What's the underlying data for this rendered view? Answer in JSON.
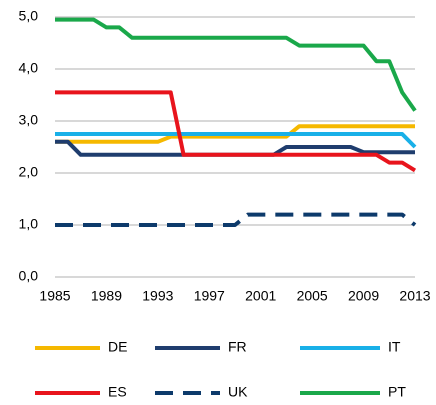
{
  "chart_data": {
    "type": "line",
    "x": [
      1985,
      1986,
      1987,
      1988,
      1989,
      1990,
      1991,
      1992,
      1993,
      1994,
      1995,
      1996,
      1997,
      1998,
      1999,
      2000,
      2001,
      2002,
      2003,
      2004,
      2005,
      2006,
      2007,
      2008,
      2009,
      2010,
      2011,
      2012,
      2013
    ],
    "series": [
      {
        "name": "DE",
        "color": "#f5b800",
        "values": [
          2.6,
          2.6,
          2.6,
          2.6,
          2.6,
          2.6,
          2.6,
          2.6,
          2.6,
          2.7,
          2.7,
          2.7,
          2.7,
          2.7,
          2.7,
          2.7,
          2.7,
          2.7,
          2.7,
          2.9,
          2.9,
          2.9,
          2.9,
          2.9,
          2.9,
          2.9,
          2.9,
          2.9,
          2.9
        ]
      },
      {
        "name": "FR",
        "color": "#1f3d6e",
        "values": [
          2.6,
          2.6,
          2.35,
          2.35,
          2.35,
          2.35,
          2.35,
          2.35,
          2.35,
          2.35,
          2.35,
          2.35,
          2.35,
          2.35,
          2.35,
          2.35,
          2.35,
          2.35,
          2.5,
          2.5,
          2.5,
          2.5,
          2.5,
          2.5,
          2.4,
          2.4,
          2.4,
          2.4,
          2.4
        ]
      },
      {
        "name": "IT",
        "color": "#19b0e8",
        "values": [
          2.75,
          2.75,
          2.75,
          2.75,
          2.75,
          2.75,
          2.75,
          2.75,
          2.75,
          2.75,
          2.75,
          2.75,
          2.75,
          2.75,
          2.75,
          2.75,
          2.75,
          2.75,
          2.75,
          2.75,
          2.75,
          2.75,
          2.75,
          2.75,
          2.75,
          2.75,
          2.75,
          2.75,
          2.5
        ]
      },
      {
        "name": "ES",
        "color": "#e8141c",
        "values": [
          3.55,
          3.55,
          3.55,
          3.55,
          3.55,
          3.55,
          3.55,
          3.55,
          3.55,
          3.55,
          2.35,
          2.35,
          2.35,
          2.35,
          2.35,
          2.35,
          2.35,
          2.35,
          2.35,
          2.35,
          2.35,
          2.35,
          2.35,
          2.35,
          2.35,
          2.35,
          2.2,
          2.2,
          2.05
        ]
      },
      {
        "name": "UK",
        "color": "#0d3a6b",
        "dashed": true,
        "values": [
          1.0,
          1.0,
          1.0,
          1.0,
          1.0,
          1.0,
          1.0,
          1.0,
          1.0,
          1.0,
          1.0,
          1.0,
          1.0,
          1.0,
          1.0,
          1.2,
          1.2,
          1.2,
          1.2,
          1.2,
          1.2,
          1.2,
          1.2,
          1.2,
          1.2,
          1.2,
          1.2,
          1.2,
          1.0
        ]
      },
      {
        "name": "PT",
        "color": "#1aa84a",
        "values": [
          4.95,
          4.95,
          4.95,
          4.95,
          4.8,
          4.8,
          4.6,
          4.6,
          4.6,
          4.6,
          4.6,
          4.6,
          4.6,
          4.6,
          4.6,
          4.6,
          4.6,
          4.6,
          4.6,
          4.45,
          4.45,
          4.45,
          4.45,
          4.45,
          4.45,
          4.15,
          4.15,
          3.55,
          3.2
        ]
      }
    ],
    "xlim": [
      1985,
      2013
    ],
    "xticks": [
      1985,
      1989,
      1993,
      1997,
      2001,
      2005,
      2009,
      2013
    ],
    "ylim": [
      0,
      5
    ],
    "yticks": [
      {
        "value": 0,
        "label": "0,0"
      },
      {
        "value": 1,
        "label": "1,0"
      },
      {
        "value": 2,
        "label": "2,0"
      },
      {
        "value": 3,
        "label": "3,0"
      },
      {
        "value": 4,
        "label": "4,0"
      },
      {
        "value": 5,
        "label": "5,0"
      }
    ],
    "grid": true,
    "legend": "bottom"
  }
}
